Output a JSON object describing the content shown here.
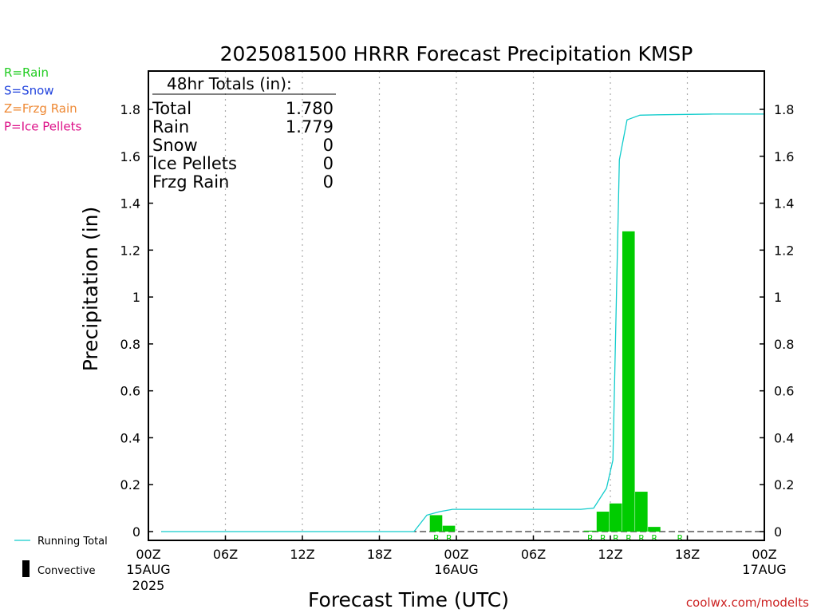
{
  "chart_data": {
    "type": "bar",
    "title": "2025081500 HRRR Forecast Precipitation KMSP",
    "xlabel": "Forecast Time (UTC)",
    "ylabel": "Precipitation (in)",
    "ylim": [
      0,
      1.95
    ],
    "y_ticks": [
      0,
      0.2,
      0.4,
      0.6,
      0.8,
      1,
      1.2,
      1.4,
      1.6,
      1.8
    ],
    "y_tick_labels": [
      "0",
      "0.2",
      "0.4",
      "0.6",
      "0.8",
      "1",
      "1.2",
      "1.4",
      "1.6",
      "1.8"
    ],
    "xlim_hours": [
      0,
      48
    ],
    "x_ticks": [
      {
        "hour": 0,
        "label": "00Z",
        "sub": [
          "15AUG",
          "2025"
        ]
      },
      {
        "hour": 6,
        "label": "06Z",
        "sub": []
      },
      {
        "hour": 12,
        "label": "12Z",
        "sub": []
      },
      {
        "hour": 18,
        "label": "18Z",
        "sub": []
      },
      {
        "hour": 24,
        "label": "00Z",
        "sub": [
          "16AUG"
        ]
      },
      {
        "hour": 30,
        "label": "06Z",
        "sub": []
      },
      {
        "hour": 36,
        "label": "12Z",
        "sub": []
      },
      {
        "hour": 42,
        "label": "18Z",
        "sub": []
      },
      {
        "hour": 48,
        "label": "00Z",
        "sub": [
          "17AUG"
        ]
      }
    ],
    "grid": "vertical-dotted",
    "series": [
      {
        "name": "Rain",
        "kind": "hourly-bars",
        "color": "#00cc00",
        "points": [
          {
            "hour": 22,
            "value": 0.07,
            "type": "R"
          },
          {
            "hour": 23,
            "value": 0.025,
            "type": "R"
          },
          {
            "hour": 34,
            "value": 0.004,
            "type": "R"
          },
          {
            "hour": 35,
            "value": 0.085,
            "type": "R"
          },
          {
            "hour": 36,
            "value": 0.12,
            "type": "R"
          },
          {
            "hour": 37,
            "value": 1.28,
            "type": "R"
          },
          {
            "hour": 38,
            "value": 0.17,
            "type": "R"
          },
          {
            "hour": 39,
            "value": 0.02,
            "type": "R"
          },
          {
            "hour": 41,
            "value": 0.0,
            "type": "R"
          }
        ]
      },
      {
        "name": "Running Total",
        "kind": "line",
        "color": "#11cccc",
        "x": [
          1,
          20.7,
          21.7,
          22.7,
          23.7,
          33.7,
          34.7,
          35.7,
          36.2,
          36.7,
          37.3,
          38.3,
          39.7,
          44,
          48
        ],
        "y": [
          0,
          0,
          0.07,
          0.085,
          0.095,
          0.095,
          0.1,
          0.185,
          0.305,
          1.585,
          1.755,
          1.775,
          1.777,
          1.78,
          1.78
        ]
      }
    ]
  },
  "totals_box": {
    "header": "48hr Totals (in):",
    "rows": [
      {
        "label": "Total",
        "value": "1.780"
      },
      {
        "label": "Rain",
        "value": "1.779"
      },
      {
        "label": "Snow",
        "value": "0"
      },
      {
        "label": "Ice Pellets",
        "value": "0"
      },
      {
        "label": "Frzg Rain",
        "value": "0"
      }
    ]
  },
  "type_legend": [
    {
      "text": "R=Rain",
      "color": "#22cc22"
    },
    {
      "text": "S=Snow",
      "color": "#2244dd"
    },
    {
      "text": "Z=Frzg Rain",
      "color": "#ee8833"
    },
    {
      "text": "P=Ice Pellets",
      "color": "#dd1188"
    }
  ],
  "legend": {
    "running_total": "Running Total",
    "convective": "Convective"
  },
  "credit": "coolwx.com/modelts",
  "colors": {
    "rain_bar": "#00cc00",
    "running_total": "#11cccc",
    "credit": "#cc2222"
  }
}
